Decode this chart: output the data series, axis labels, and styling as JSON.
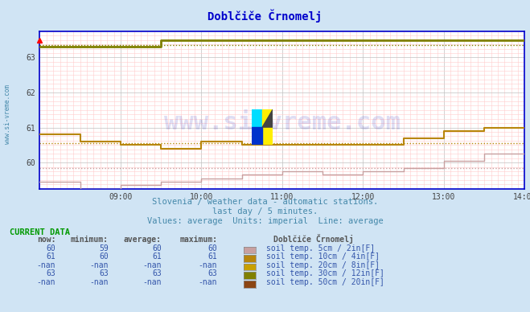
{
  "title": "Doblčiče Črnomelj",
  "title_color": "#0000cc",
  "bg_color": "#d0e4f4",
  "plot_bg_color": "#ffffff",
  "grid_color_major": "#c0c0c0",
  "grid_color_minor": "#ffcccc",
  "x_min": 0,
  "x_max": 432,
  "y_min": 59.25,
  "y_max": 63.75,
  "y_ticks": [
    60,
    61,
    62,
    63
  ],
  "x_tick_labels": [
    "09:00",
    "10:00",
    "11:00",
    "12:00",
    "13:00",
    "14:00"
  ],
  "x_tick_positions": [
    72,
    144,
    216,
    288,
    360,
    432
  ],
  "subtitle1": "Slovenia / weather data - automatic stations.",
  "subtitle2": "last day / 5 minutes.",
  "subtitle3": "Values: average  Units: imperial  Line: average",
  "subtitle_color": "#4488aa",
  "watermark": "www.si-vreme.com",
  "watermark_color": "#0000aa",
  "watermark_alpha": 0.13,
  "sidevreme_color": "#4488aa",
  "axis_color": "#0000cc",
  "series": [
    {
      "label": "soil temp. 5cm / 2in[F]",
      "color": "#c8a0a0",
      "linewidth": 1.0,
      "data_x": [
        0,
        36,
        36,
        72,
        72,
        108,
        108,
        144,
        144,
        180,
        180,
        216,
        216,
        252,
        252,
        288,
        288,
        324,
        324,
        360,
        360,
        396,
        396,
        432
      ],
      "data_y": [
        59.45,
        59.45,
        59.25,
        59.25,
        59.35,
        59.35,
        59.45,
        59.45,
        59.55,
        59.55,
        59.65,
        59.65,
        59.75,
        59.75,
        59.65,
        59.65,
        59.75,
        59.75,
        59.85,
        59.85,
        60.05,
        60.05,
        60.25,
        60.25
      ]
    },
    {
      "label": "soil temp. 10cm / 4in[F]",
      "color": "#b8860b",
      "linewidth": 1.5,
      "data_x": [
        0,
        36,
        36,
        72,
        72,
        108,
        108,
        144,
        144,
        180,
        180,
        216,
        216,
        252,
        252,
        288,
        288,
        324,
        324,
        360,
        360,
        396,
        396,
        432
      ],
      "data_y": [
        60.8,
        60.8,
        60.6,
        60.6,
        60.5,
        60.5,
        60.4,
        60.4,
        60.6,
        60.6,
        60.5,
        60.5,
        60.5,
        60.5,
        60.5,
        60.5,
        60.5,
        60.5,
        60.7,
        60.7,
        60.9,
        60.9,
        61.0,
        61.0
      ]
    },
    {
      "label": "soil temp. 30cm / 12in[F]",
      "color": "#808000",
      "linewidth": 2.0,
      "data_x": [
        0,
        108,
        108,
        432
      ],
      "data_y": [
        63.3,
        63.3,
        63.5,
        63.5
      ]
    }
  ],
  "avg_lines": [
    {
      "y": 59.85,
      "color": "#c8a0a0",
      "linestyle": "dotted",
      "linewidth": 1.0
    },
    {
      "y": 60.55,
      "color": "#b8860b",
      "linestyle": "dotted",
      "linewidth": 1.0
    },
    {
      "y": 63.35,
      "color": "#808000",
      "linestyle": "dotted",
      "linewidth": 1.0
    }
  ],
  "legend_items": [
    {
      "label": "soil temp. 5cm / 2in[F]",
      "color": "#c8a0a0"
    },
    {
      "label": "soil temp. 10cm / 4in[F]",
      "color": "#b8860b"
    },
    {
      "label": "soil temp. 20cm / 8in[F]",
      "color": "#c8a000"
    },
    {
      "label": "soil temp. 30cm / 12in[F]",
      "color": "#808000"
    },
    {
      "label": "soil temp. 50cm / 20in[F]",
      "color": "#8b4513"
    }
  ],
  "table_data": [
    {
      "now": "60",
      "min": "59",
      "avg": "60",
      "max": "60"
    },
    {
      "now": "61",
      "min": "60",
      "avg": "61",
      "max": "61"
    },
    {
      "now": "-nan",
      "min": "-nan",
      "avg": "-nan",
      "max": "-nan"
    },
    {
      "now": "63",
      "min": "63",
      "avg": "63",
      "max": "63"
    },
    {
      "now": "-nan",
      "min": "-nan",
      "avg": "-nan",
      "max": "-nan"
    }
  ]
}
